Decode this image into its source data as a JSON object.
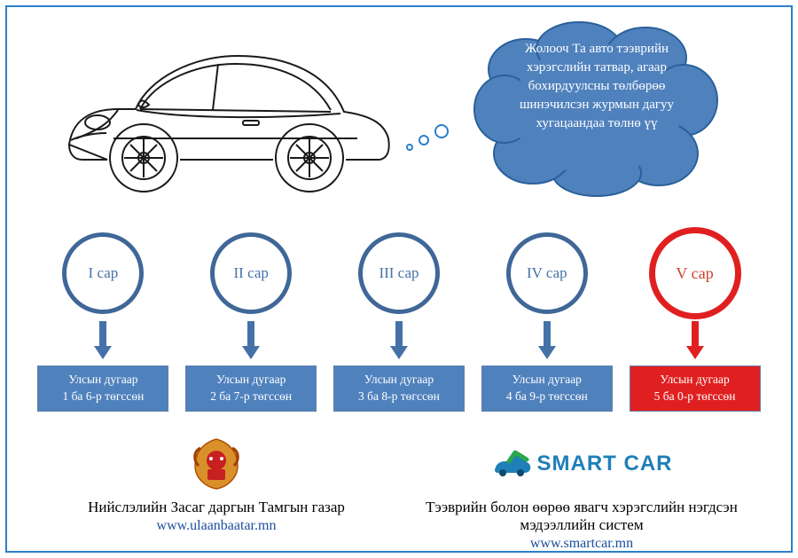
{
  "colors": {
    "frame": "#2a7fc9",
    "bubble_fill": "#4f81bd",
    "bubble_stroke": "#2a6099",
    "bubble_text": "#ffffff",
    "circle_border_normal": "#3f6797",
    "circle_text_normal": "#4472a8",
    "circle_border_hl": "#e02020",
    "circle_text_hl": "#d04030",
    "arrow_normal": "#4472a8",
    "arrow_hl": "#e02020",
    "box_fill_normal": "#4f81bd",
    "box_fill_hl": "#e02020",
    "box_text": "#ffffff",
    "link": "#1a4f9c",
    "smartcar_brand": "#1f7fb8",
    "car_stroke": "#1a1a1a"
  },
  "bubble": {
    "text": "Жолооч Та авто тээврийн хэрэгслийн татвар, агаар бохирдуулсны төлбөрөө шинэчилсэн журмын дагуу хугацаандаа төлнө үү"
  },
  "months": [
    {
      "label": "I сар",
      "box_line1": "Улсын дугаар",
      "box_line2": "1 ба 6-р төгссөн",
      "highlight": false
    },
    {
      "label": "II сар",
      "box_line1": "Улсын дугаар",
      "box_line2": "2 ба 7-р төгссөн",
      "highlight": false
    },
    {
      "label": "III сар",
      "box_line1": "Улсын дугаар",
      "box_line2": "3 ба 8-р төгссөн",
      "highlight": false
    },
    {
      "label": "IV сар",
      "box_line1": "Улсын дугаар",
      "box_line2": "4 ба 9-р төгссөн",
      "highlight": false
    },
    {
      "label": "V сар",
      "box_line1": "Улсын дугаар",
      "box_line2": "5 ба 0-р төгссөн",
      "highlight": true
    }
  ],
  "footer": {
    "left": {
      "title": "Нийслэлийн Засаг даргын Тамгын газар",
      "link_text": "www.ulaanbaatar.mn"
    },
    "right": {
      "brand": "SMART CAR",
      "title": "Тээврийн болон өөрөө явагч хэрэгслийн нэгдсэн  мэдээллийн систем",
      "link_text": "www.smartcar.mn"
    }
  }
}
